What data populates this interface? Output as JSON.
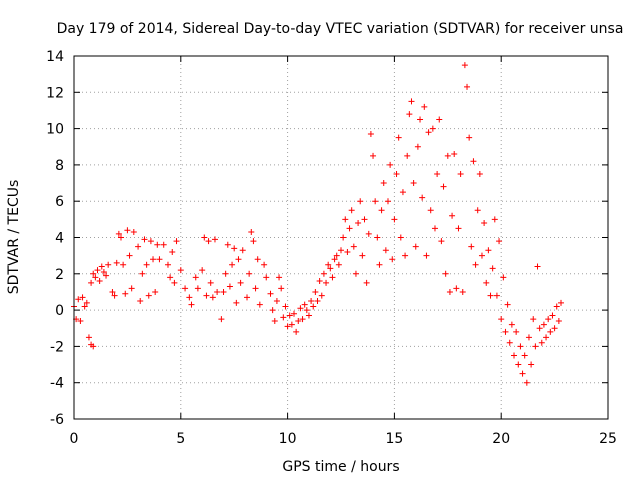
{
  "chart_data": {
    "type": "scatter",
    "title": "Day 179 of 2014, Sidereal Day-to-day VTEC variation (SDTVAR) for receiver unsa",
    "xlabel": "GPS time / hours",
    "ylabel": "SDTVAR / TECUs",
    "xlim": [
      0,
      25
    ],
    "ylim": [
      -6,
      14
    ],
    "xticks": [
      0,
      5,
      10,
      15,
      20,
      25
    ],
    "yticks": [
      -6,
      -4,
      -2,
      0,
      2,
      4,
      6,
      8,
      10,
      12,
      14
    ],
    "xtick_labels": [
      "0",
      "5",
      "10",
      "15",
      "20",
      "25"
    ],
    "ytick_labels": [
      "-6",
      "-4",
      "-2",
      "0",
      "2",
      "4",
      "6",
      "8",
      "10",
      "12",
      "14"
    ],
    "grid": true,
    "marker": "+",
    "color": "#ff0000",
    "series": [
      {
        "name": "SDTVAR",
        "points": [
          [
            0.0,
            0.2
          ],
          [
            0.1,
            -0.5
          ],
          [
            0.2,
            0.6
          ],
          [
            0.3,
            -0.6
          ],
          [
            0.4,
            0.7
          ],
          [
            0.5,
            0.2
          ],
          [
            0.6,
            0.4
          ],
          [
            0.7,
            -1.5
          ],
          [
            0.8,
            -1.9
          ],
          [
            0.9,
            -2.0
          ],
          [
            0.8,
            1.5
          ],
          [
            0.9,
            2.0
          ],
          [
            1.0,
            1.8
          ],
          [
            1.1,
            2.2
          ],
          [
            1.2,
            1.6
          ],
          [
            1.3,
            2.4
          ],
          [
            1.4,
            2.1
          ],
          [
            1.5,
            1.9
          ],
          [
            1.6,
            2.5
          ],
          [
            1.8,
            1.0
          ],
          [
            1.9,
            0.8
          ],
          [
            2.0,
            2.6
          ],
          [
            2.1,
            4.2
          ],
          [
            2.2,
            4.0
          ],
          [
            2.3,
            2.5
          ],
          [
            2.4,
            0.9
          ],
          [
            2.5,
            4.4
          ],
          [
            2.6,
            3.0
          ],
          [
            2.7,
            1.2
          ],
          [
            2.8,
            4.3
          ],
          [
            3.0,
            3.5
          ],
          [
            3.1,
            0.5
          ],
          [
            3.2,
            2.0
          ],
          [
            3.3,
            3.9
          ],
          [
            3.4,
            2.5
          ],
          [
            3.5,
            0.8
          ],
          [
            3.6,
            3.8
          ],
          [
            3.7,
            2.8
          ],
          [
            3.8,
            1.0
          ],
          [
            3.9,
            3.6
          ],
          [
            4.0,
            2.8
          ],
          [
            4.2,
            3.6
          ],
          [
            4.4,
            2.5
          ],
          [
            4.5,
            1.8
          ],
          [
            4.6,
            3.2
          ],
          [
            4.7,
            1.5
          ],
          [
            4.8,
            3.8
          ],
          [
            5.0,
            2.2
          ],
          [
            5.2,
            1.2
          ],
          [
            5.4,
            0.7
          ],
          [
            5.5,
            0.3
          ],
          [
            5.7,
            1.8
          ],
          [
            5.8,
            1.2
          ],
          [
            6.0,
            2.2
          ],
          [
            6.1,
            4.0
          ],
          [
            6.2,
            0.8
          ],
          [
            6.3,
            3.8
          ],
          [
            6.4,
            1.5
          ],
          [
            6.5,
            0.7
          ],
          [
            6.6,
            3.9
          ],
          [
            6.7,
            1.0
          ],
          [
            6.9,
            -0.5
          ],
          [
            7.0,
            1.0
          ],
          [
            7.1,
            2.0
          ],
          [
            7.2,
            3.6
          ],
          [
            7.3,
            1.3
          ],
          [
            7.4,
            2.5
          ],
          [
            7.5,
            3.4
          ],
          [
            7.6,
            0.4
          ],
          [
            7.7,
            2.8
          ],
          [
            7.8,
            1.5
          ],
          [
            7.9,
            3.3
          ],
          [
            8.1,
            0.7
          ],
          [
            8.2,
            2.0
          ],
          [
            8.3,
            4.3
          ],
          [
            8.4,
            3.8
          ],
          [
            8.5,
            1.2
          ],
          [
            8.6,
            2.8
          ],
          [
            8.7,
            0.3
          ],
          [
            8.9,
            2.5
          ],
          [
            9.0,
            1.8
          ],
          [
            9.2,
            0.9
          ],
          [
            9.3,
            0.0
          ],
          [
            9.4,
            -0.6
          ],
          [
            9.5,
            0.5
          ],
          [
            9.6,
            1.8
          ],
          [
            9.7,
            1.2
          ],
          [
            9.8,
            -0.4
          ],
          [
            9.9,
            0.2
          ],
          [
            10.0,
            -0.9
          ],
          [
            10.1,
            -0.3
          ],
          [
            10.2,
            -0.8
          ],
          [
            10.3,
            -0.2
          ],
          [
            10.4,
            -1.2
          ],
          [
            10.5,
            -0.6
          ],
          [
            10.6,
            0.1
          ],
          [
            10.7,
            -0.5
          ],
          [
            10.8,
            0.3
          ],
          [
            10.9,
            0.0
          ],
          [
            11.0,
            -0.3
          ],
          [
            11.1,
            0.5
          ],
          [
            11.2,
            0.2
          ],
          [
            11.3,
            1.0
          ],
          [
            11.4,
            0.5
          ],
          [
            11.5,
            1.6
          ],
          [
            11.6,
            0.8
          ],
          [
            11.7,
            2.0
          ],
          [
            11.8,
            1.5
          ],
          [
            11.9,
            2.5
          ],
          [
            12.0,
            2.3
          ],
          [
            12.1,
            1.8
          ],
          [
            12.2,
            2.8
          ],
          [
            12.3,
            3.0
          ],
          [
            12.4,
            2.5
          ],
          [
            12.5,
            3.3
          ],
          [
            12.6,
            4.0
          ],
          [
            12.7,
            5.0
          ],
          [
            12.8,
            3.2
          ],
          [
            12.9,
            4.5
          ],
          [
            13.0,
            5.5
          ],
          [
            13.1,
            3.5
          ],
          [
            13.2,
            2.0
          ],
          [
            13.3,
            4.8
          ],
          [
            13.4,
            6.0
          ],
          [
            13.5,
            3.0
          ],
          [
            13.6,
            5.0
          ],
          [
            13.7,
            1.5
          ],
          [
            13.8,
            4.2
          ],
          [
            13.9,
            9.7
          ],
          [
            14.0,
            8.5
          ],
          [
            14.1,
            6.0
          ],
          [
            14.2,
            4.0
          ],
          [
            14.3,
            2.5
          ],
          [
            14.4,
            5.5
          ],
          [
            14.5,
            7.0
          ],
          [
            14.6,
            3.3
          ],
          [
            14.7,
            6.0
          ],
          [
            14.8,
            8.0
          ],
          [
            14.9,
            2.8
          ],
          [
            15.0,
            5.0
          ],
          [
            15.1,
            7.5
          ],
          [
            15.2,
            9.5
          ],
          [
            15.3,
            4.0
          ],
          [
            15.4,
            6.5
          ],
          [
            15.5,
            3.0
          ],
          [
            15.6,
            8.5
          ],
          [
            15.7,
            10.8
          ],
          [
            15.8,
            11.5
          ],
          [
            15.9,
            7.0
          ],
          [
            16.0,
            3.5
          ],
          [
            16.1,
            9.0
          ],
          [
            16.2,
            10.5
          ],
          [
            16.3,
            6.2
          ],
          [
            16.4,
            11.2
          ],
          [
            16.5,
            3.0
          ],
          [
            16.6,
            9.8
          ],
          [
            16.7,
            5.5
          ],
          [
            16.8,
            10.0
          ],
          [
            16.9,
            4.5
          ],
          [
            17.0,
            7.5
          ],
          [
            17.1,
            10.5
          ],
          [
            17.2,
            3.8
          ],
          [
            17.3,
            6.8
          ],
          [
            17.4,
            2.0
          ],
          [
            17.5,
            8.5
          ],
          [
            17.6,
            1.0
          ],
          [
            17.7,
            5.2
          ],
          [
            17.8,
            8.6
          ],
          [
            17.9,
            1.2
          ],
          [
            18.0,
            4.5
          ],
          [
            18.1,
            7.5
          ],
          [
            18.2,
            1.0
          ],
          [
            18.3,
            13.5
          ],
          [
            18.4,
            12.3
          ],
          [
            18.5,
            9.5
          ],
          [
            18.6,
            3.5
          ],
          [
            18.7,
            8.2
          ],
          [
            18.8,
            2.5
          ],
          [
            18.9,
            5.5
          ],
          [
            19.0,
            7.5
          ],
          [
            19.1,
            3.0
          ],
          [
            19.2,
            4.8
          ],
          [
            19.3,
            1.5
          ],
          [
            19.4,
            3.3
          ],
          [
            19.5,
            0.8
          ],
          [
            19.6,
            2.3
          ],
          [
            19.7,
            5.0
          ],
          [
            19.8,
            0.8
          ],
          [
            19.9,
            3.8
          ],
          [
            20.0,
            -0.5
          ],
          [
            20.1,
            1.8
          ],
          [
            20.2,
            -1.2
          ],
          [
            20.3,
            0.3
          ],
          [
            20.4,
            -1.8
          ],
          [
            20.5,
            -0.8
          ],
          [
            20.6,
            -2.5
          ],
          [
            20.7,
            -1.2
          ],
          [
            20.8,
            -3.0
          ],
          [
            20.9,
            -2.0
          ],
          [
            21.0,
            -3.5
          ],
          [
            21.1,
            -2.5
          ],
          [
            21.2,
            -4.0
          ],
          [
            21.3,
            -1.5
          ],
          [
            21.4,
            -3.0
          ],
          [
            21.5,
            -0.5
          ],
          [
            21.6,
            -2.0
          ],
          [
            21.7,
            2.4
          ],
          [
            21.8,
            -1.0
          ],
          [
            21.9,
            -1.8
          ],
          [
            22.0,
            -0.8
          ],
          [
            22.1,
            -1.5
          ],
          [
            22.2,
            -0.5
          ],
          [
            22.3,
            -1.2
          ],
          [
            22.4,
            -0.3
          ],
          [
            22.5,
            -1.0
          ],
          [
            22.6,
            0.2
          ],
          [
            22.7,
            -0.6
          ],
          [
            22.8,
            0.4
          ]
        ]
      }
    ]
  }
}
